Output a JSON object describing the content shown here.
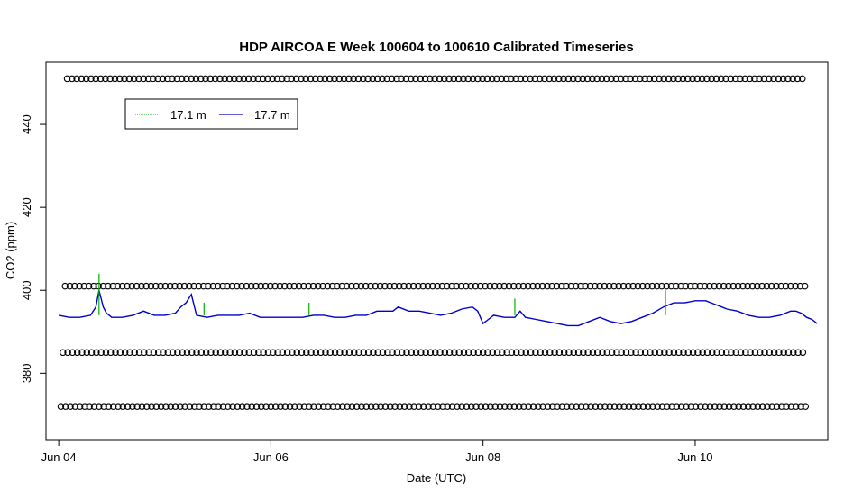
{
  "chart_data": {
    "type": "line",
    "title": "HDP AIRCOA E  Week 100604 to 100610  Calibrated Timeseries",
    "xlabel": "Date (UTC)",
    "ylabel": "CO2 (ppm)",
    "xlim_days": [
      -0.12,
      7.25
    ],
    "ylim": [
      364,
      455
    ],
    "x_ticks": [
      {
        "day": 0,
        "label": "Jun 04"
      },
      {
        "day": 2,
        "label": "Jun 06"
      },
      {
        "day": 4,
        "label": "Jun 08"
      },
      {
        "day": 6,
        "label": "Jun 10"
      }
    ],
    "y_ticks": [
      {
        "value": 380,
        "label": "380"
      },
      {
        "value": 400,
        "label": "400"
      },
      {
        "value": 420,
        "label": "420"
      },
      {
        "value": 440,
        "label": "440"
      }
    ],
    "legend": {
      "placement": "top-left",
      "entries": [
        {
          "name": "17.1 m",
          "color": "#00b000"
        },
        {
          "name": "17.7 m",
          "color": "#0000cc"
        }
      ]
    },
    "series": [
      {
        "name": "17.7 m",
        "color": "#0000cc",
        "x_days": [
          0,
          0.1,
          0.2,
          0.3,
          0.35,
          0.38,
          0.4,
          0.42,
          0.45,
          0.5,
          0.6,
          0.7,
          0.8,
          0.9,
          1.0,
          1.1,
          1.15,
          1.2,
          1.25,
          1.3,
          1.4,
          1.5,
          1.6,
          1.7,
          1.8,
          1.9,
          2.0,
          2.1,
          2.2,
          2.3,
          2.4,
          2.5,
          2.6,
          2.7,
          2.8,
          2.9,
          3.0,
          3.1,
          3.15,
          3.2,
          3.3,
          3.4,
          3.5,
          3.6,
          3.7,
          3.8,
          3.9,
          3.95,
          4.0,
          4.05,
          4.1,
          4.2,
          4.3,
          4.35,
          4.4,
          4.5,
          4.6,
          4.7,
          4.8,
          4.9,
          5.0,
          5.1,
          5.2,
          5.3,
          5.4,
          5.5,
          5.6,
          5.7,
          5.8,
          5.9,
          6.0,
          6.1,
          6.2,
          6.25,
          6.3,
          6.4,
          6.5,
          6.6,
          6.7,
          6.8,
          6.9,
          6.95,
          7.0,
          7.05,
          7.1,
          7.15
        ],
        "y": [
          394,
          393.5,
          393.5,
          394,
          396,
          400,
          398,
          396,
          394.5,
          393.5,
          393.5,
          394,
          395,
          394,
          394,
          394.5,
          396,
          397,
          399,
          394,
          393.5,
          394,
          394,
          394,
          394.5,
          393.5,
          393.5,
          393.5,
          393.5,
          393.5,
          394,
          394,
          393.5,
          393.5,
          394,
          394,
          395,
          395,
          395,
          396,
          395,
          395,
          394.5,
          394,
          394.5,
          395.5,
          396,
          395,
          392,
          393,
          394,
          393.5,
          393.5,
          395,
          393.5,
          393,
          392.5,
          392,
          391.5,
          391.5,
          392.5,
          393.5,
          392.5,
          392,
          392.5,
          393.5,
          394.5,
          396,
          397,
          397,
          397.5,
          397.5,
          396.5,
          396,
          395.5,
          395,
          394,
          393.5,
          393.5,
          394,
          395,
          395,
          394.5,
          393.5,
          393,
          392
        ]
      },
      {
        "name": "17.1 m",
        "color": "#00b000",
        "x_days": [
          0.38,
          1.37,
          2.36,
          4.3,
          5.72
        ],
        "y": [
          404,
          397,
          397,
          398,
          400
        ]
      }
    ],
    "marker_rows": [
      {
        "y": 451,
        "x_start": 0.08
      },
      {
        "y": 401,
        "x_start": 0.06
      },
      {
        "y": 385,
        "x_start": 0.04
      },
      {
        "y": 372,
        "x_start": 0.02
      }
    ]
  }
}
